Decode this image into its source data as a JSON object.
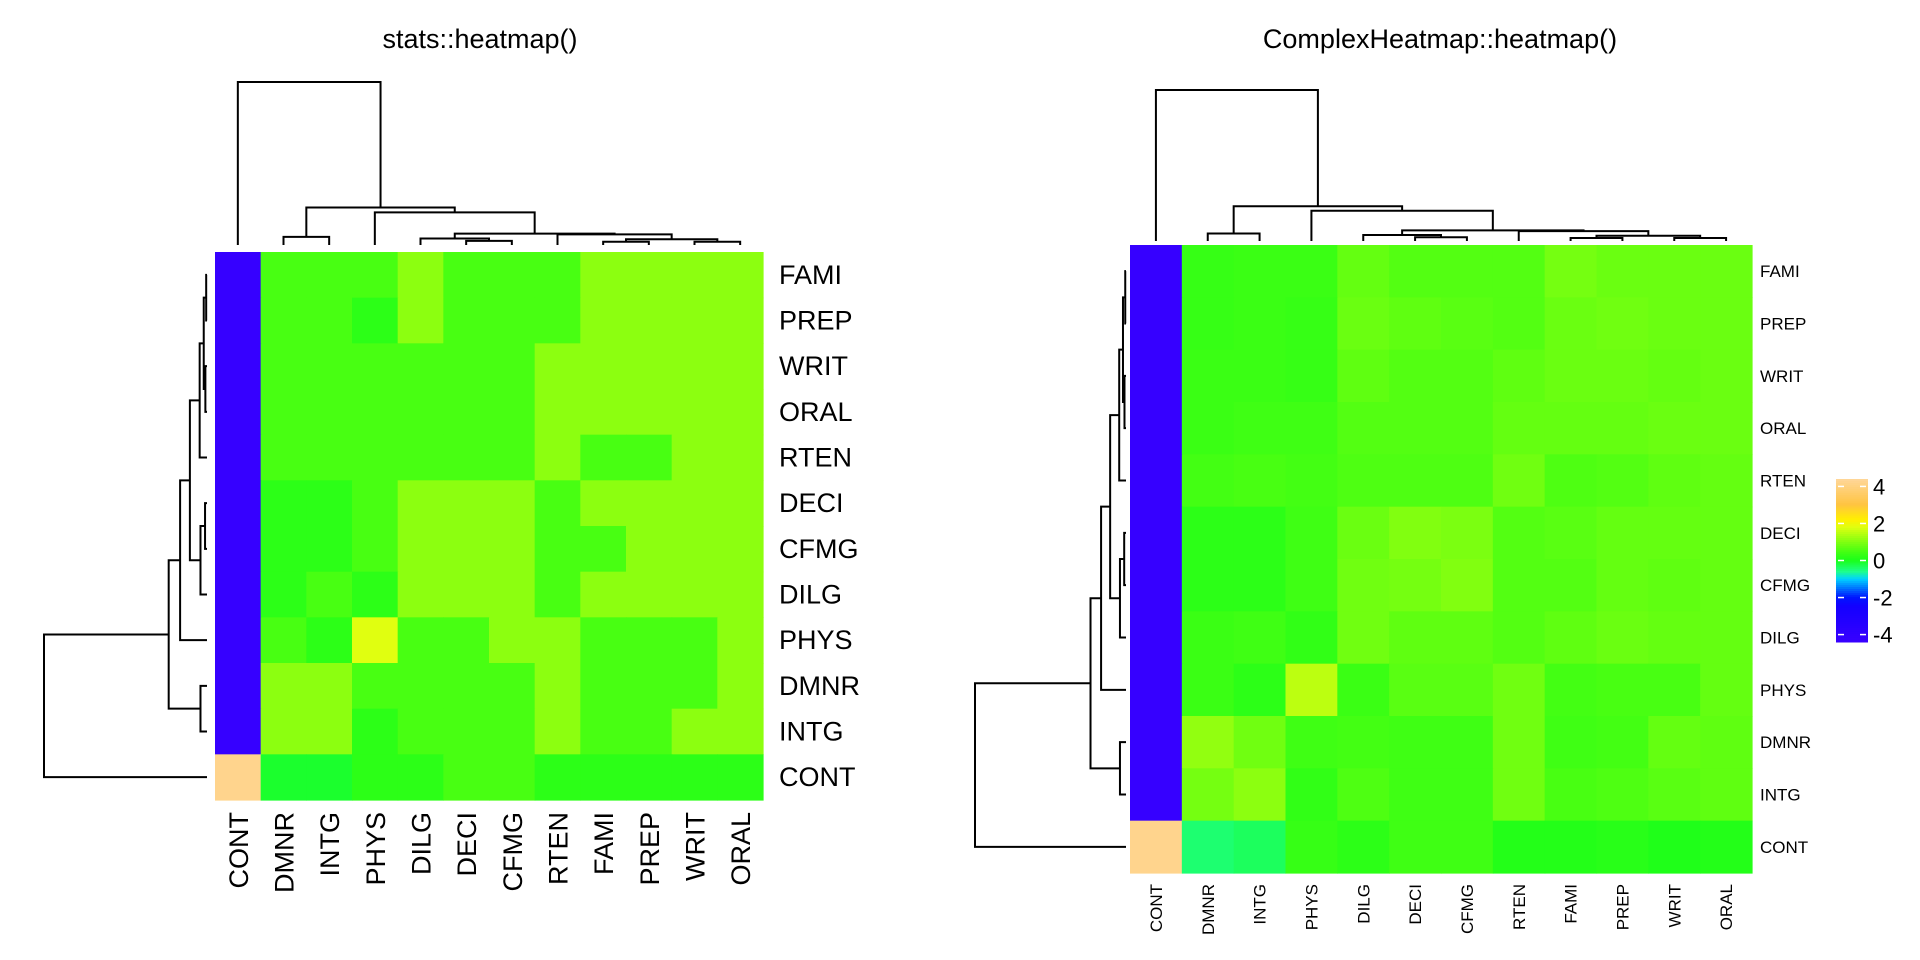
{
  "chart_data": [
    {
      "type": "heatmap",
      "title": "stats::heatmap()",
      "row_labels": [
        "FAMI",
        "PREP",
        "WRIT",
        "ORAL",
        "RTEN",
        "DECI",
        "CFMG",
        "DILG",
        "PHYS",
        "DMNR",
        "INTG",
        "CONT"
      ],
      "col_labels": [
        "CONT",
        "DMNR",
        "INTG",
        "PHYS",
        "DILG",
        "DECI",
        "CFMG",
        "RTEN",
        "FAMI",
        "PREP",
        "WRIT",
        "ORAL"
      ],
      "color_scale": "rainbow",
      "value_range": [
        -4,
        4
      ],
      "row_dendrogram": "left",
      "col_dendrogram": "top",
      "values": [
        [
          -4.3,
          0.5,
          0.5,
          0.5,
          1.1,
          0.5,
          0.5,
          0.5,
          1.1,
          1.1,
          1.1,
          1.1
        ],
        [
          -4.3,
          0.5,
          0.5,
          0.2,
          1.1,
          0.5,
          0.5,
          0.5,
          1.1,
          1.1,
          1.1,
          1.1
        ],
        [
          -4.3,
          0.5,
          0.5,
          0.5,
          0.5,
          0.5,
          0.5,
          1.1,
          1.1,
          1.1,
          1.1,
          1.1
        ],
        [
          -4.3,
          0.5,
          0.5,
          0.5,
          0.5,
          0.5,
          0.5,
          1.1,
          1.1,
          1.1,
          1.1,
          1.1
        ],
        [
          -4.3,
          0.5,
          0.5,
          0.5,
          0.5,
          0.5,
          0.5,
          1.1,
          0.5,
          0.5,
          1.1,
          1.1
        ],
        [
          -4.3,
          0.2,
          0.2,
          0.5,
          1.1,
          1.1,
          1.1,
          0.5,
          1.1,
          1.1,
          1.1,
          1.1
        ],
        [
          -4.3,
          0.2,
          0.2,
          0.5,
          1.1,
          1.1,
          1.1,
          0.5,
          0.5,
          1.1,
          1.1,
          1.1
        ],
        [
          -4.3,
          0.2,
          0.5,
          0.2,
          1.1,
          1.1,
          1.1,
          0.5,
          1.1,
          1.1,
          1.1,
          1.1
        ],
        [
          -4.3,
          0.5,
          0.2,
          1.8,
          0.5,
          0.5,
          1.1,
          1.1,
          0.5,
          0.5,
          0.5,
          1.1
        ],
        [
          -4.3,
          1.1,
          1.1,
          0.5,
          0.5,
          0.5,
          0.5,
          1.1,
          0.5,
          0.5,
          0.5,
          1.1
        ],
        [
          -4.3,
          1.1,
          1.1,
          0.2,
          0.5,
          0.5,
          0.5,
          1.1,
          0.5,
          0.5,
          1.1,
          1.1
        ],
        [
          4.2,
          -0.1,
          -0.1,
          0.2,
          0.2,
          0.5,
          0.5,
          0.2,
          0.2,
          0.2,
          0.2,
          0.2
        ]
      ]
    },
    {
      "type": "heatmap",
      "title": "ComplexHeatmap::heatmap()",
      "row_labels": [
        "FAMI",
        "PREP",
        "WRIT",
        "ORAL",
        "RTEN",
        "DECI",
        "CFMG",
        "DILG",
        "PHYS",
        "DMNR",
        "INTG",
        "CONT"
      ],
      "col_labels": [
        "CONT",
        "DMNR",
        "INTG",
        "PHYS",
        "DILG",
        "DECI",
        "CFMG",
        "RTEN",
        "FAMI",
        "PREP",
        "WRIT",
        "ORAL"
      ],
      "color_scale": "rainbow",
      "value_range": [
        -4,
        4
      ],
      "row_dendrogram": "left",
      "col_dendrogram": "top",
      "legend": {
        "ticks": [
          4,
          2,
          0,
          -2,
          -4
        ],
        "placement": "right"
      },
      "values": [
        [
          -4.3,
          0.3,
          0.35,
          0.35,
          0.75,
          0.6,
          0.6,
          0.6,
          0.9,
          0.8,
          0.8,
          0.8
        ],
        [
          -4.3,
          0.3,
          0.35,
          0.3,
          0.8,
          0.7,
          0.65,
          0.6,
          0.8,
          0.85,
          0.8,
          0.8
        ],
        [
          -4.3,
          0.35,
          0.35,
          0.3,
          0.7,
          0.6,
          0.6,
          0.7,
          0.8,
          0.8,
          0.75,
          0.8
        ],
        [
          -4.3,
          0.35,
          0.4,
          0.4,
          0.6,
          0.6,
          0.6,
          0.75,
          0.75,
          0.75,
          0.8,
          0.8
        ],
        [
          -4.3,
          0.45,
          0.5,
          0.45,
          0.55,
          0.55,
          0.55,
          0.85,
          0.55,
          0.6,
          0.7,
          0.75
        ],
        [
          -4.3,
          0.2,
          0.2,
          0.4,
          0.8,
          1.0,
          0.95,
          0.6,
          0.65,
          0.75,
          0.75,
          0.75
        ],
        [
          -4.3,
          0.2,
          0.2,
          0.4,
          0.85,
          0.9,
          1.0,
          0.6,
          0.6,
          0.75,
          0.7,
          0.75
        ],
        [
          -4.3,
          0.35,
          0.4,
          0.25,
          0.85,
          0.7,
          0.7,
          0.6,
          0.7,
          0.8,
          0.75,
          0.75
        ],
        [
          -4.3,
          0.35,
          0.2,
          1.5,
          0.35,
          0.65,
          0.65,
          0.85,
          0.45,
          0.5,
          0.5,
          0.75
        ],
        [
          -4.3,
          1.15,
          0.85,
          0.4,
          0.45,
          0.4,
          0.4,
          0.85,
          0.4,
          0.45,
          0.75,
          0.7
        ],
        [
          -4.3,
          0.9,
          1.1,
          0.25,
          0.55,
          0.4,
          0.4,
          0.85,
          0.5,
          0.55,
          0.65,
          0.7
        ],
        [
          4.2,
          -0.45,
          -0.35,
          0.3,
          0.2,
          0.4,
          0.4,
          0.1,
          0.1,
          0.15,
          0.05,
          0.1
        ]
      ]
    }
  ]
}
